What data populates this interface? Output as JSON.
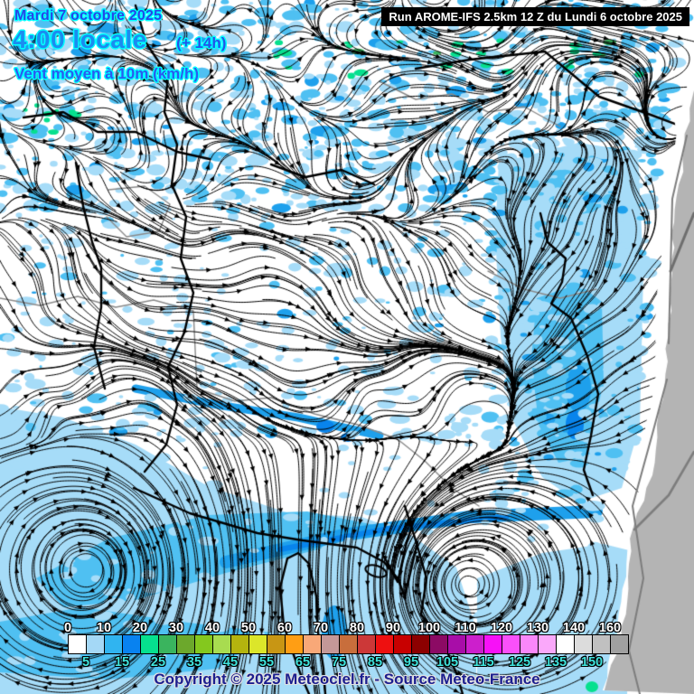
{
  "header": {
    "date_line": "Mardi 7 octobre 2025",
    "time_line": "4:00 locale",
    "offset_label": "(+ 14h)",
    "variable_label": "Vent moyen à 10m (km/h)",
    "run_label": "Run AROME-IFS 2.5km 12 Z du Lundi 6 octobre 2025"
  },
  "footer": {
    "copyright": "Copyright © 2025 Meteociel.fr - Source Meteo-France"
  },
  "scale": {
    "top_labels": [
      "0",
      "10",
      "20",
      "30",
      "40",
      "50",
      "60",
      "70",
      "80",
      "90",
      "100",
      "110",
      "120",
      "130",
      "140",
      "160"
    ],
    "bottom_labels": [
      "5",
      "15",
      "25",
      "35",
      "45",
      "55",
      "65",
      "75",
      "85",
      "95",
      "105",
      "115",
      "125",
      "135",
      "150"
    ],
    "colors": [
      "#ffffff",
      "#a4d8f6",
      "#30b4f0",
      "#0882f0",
      "#06e08e",
      "#3ab45e",
      "#6ca82c",
      "#84c81e",
      "#a8dc50",
      "#b4b40e",
      "#dce62a",
      "#c89614",
      "#ff9e14",
      "#f8a878",
      "#c49898",
      "#c86e3c",
      "#cc3838",
      "#ee1010",
      "#c80000",
      "#8c0000",
      "#8c0a64",
      "#a80da8",
      "#cc1fcc",
      "#f711f7",
      "#fa50fa",
      "#fa87fa",
      "#faa8fa",
      "#ffffff",
      "#dcdcdc",
      "#c0c0c0",
      "#a0a0a0"
    ]
  },
  "map": {
    "shade_light": "#a6dcf8",
    "shade_medium": "#4fc0f2",
    "shade_strong": "#1ea0ec",
    "shade_intense": "#0884ec",
    "shade_green": "#06e08e",
    "shade_green_dark": "#3ab45e",
    "outside_domain": "#b4b4b4",
    "border_gray": "#7d7d7d",
    "coast": "#000000",
    "streamline": "#000000"
  }
}
